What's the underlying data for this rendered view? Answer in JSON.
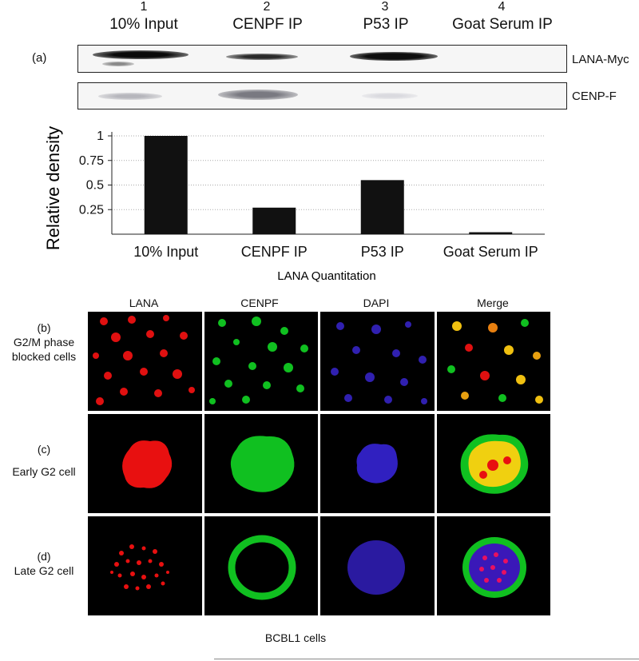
{
  "panel_a": {
    "label": "(a)",
    "lanes": [
      {
        "number": "1",
        "name": "10% Input"
      },
      {
        "number": "2",
        "name": "CENPF IP"
      },
      {
        "number": "3",
        "name": "P53 IP"
      },
      {
        "number": "4",
        "name": "Goat Serum IP"
      }
    ],
    "blots": [
      {
        "label": "LANA-Myc"
      },
      {
        "label": "CENP-F"
      }
    ]
  },
  "chart_data": {
    "type": "bar",
    "categories": [
      "10% Input",
      "CENPF IP",
      "P53 IP",
      "Goat Serum IP"
    ],
    "values": [
      1.0,
      0.27,
      0.55,
      0.02
    ],
    "xlabel": "LANA Quantitation",
    "ylabel": "Relative density",
    "ylim": [
      0,
      1
    ],
    "yticks": [
      "0.25",
      "0.5",
      "0.75",
      "1"
    ],
    "grid": true,
    "bar_color": "#111111"
  },
  "microscopy": {
    "columns": [
      "LANA",
      "CENPF",
      "DAPI",
      "Merge"
    ],
    "rows": [
      {
        "label": "(b)",
        "line1": "G2/M phase",
        "line2": "blocked cells"
      },
      {
        "label": "(c)",
        "line1": "Early G2 cell",
        "line2": ""
      },
      {
        "label": "(d)",
        "line1": "Late G2 cell",
        "line2": ""
      }
    ],
    "caption": "BCBL1 cells",
    "channel_colors": {
      "lana": "#e01010",
      "cenpf": "#10c020",
      "dapi": "#3020c0",
      "merge_overlap": "#f0d010"
    }
  }
}
